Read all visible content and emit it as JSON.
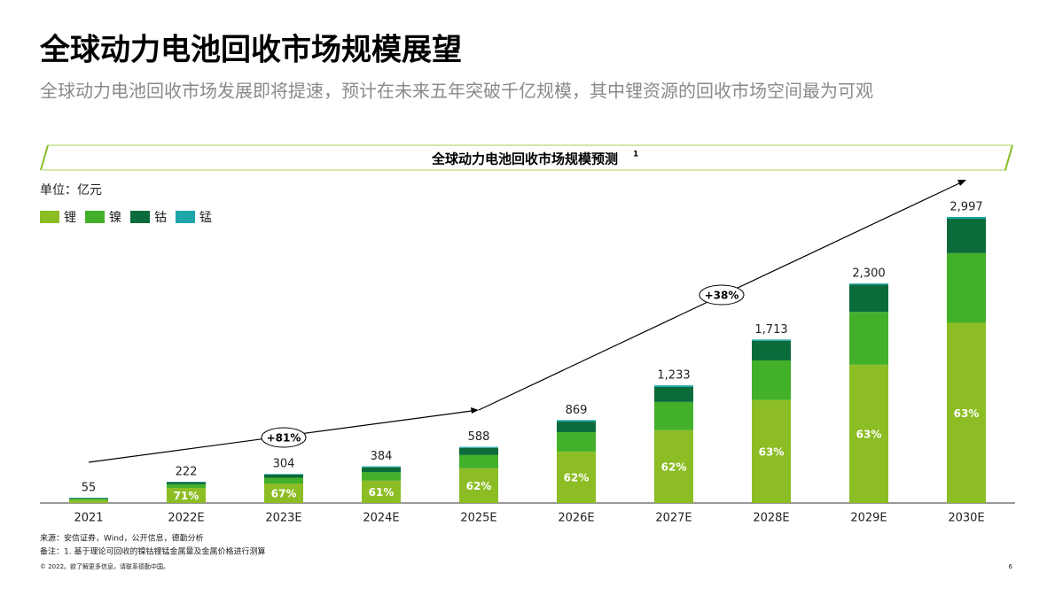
{
  "header": {
    "title": "全球动力电池回收市场规模展望",
    "subtitle": "全球动力电池回收市场发展即将提速，预计在未来五年突破千亿规模，其中锂资源的回收市场空间最为可观"
  },
  "chart_data": {
    "type": "stacked_bar",
    "title": "全球动力电池回收市场规模预测",
    "title_note": "1",
    "unit": "单位：亿元",
    "categories": [
      "2021",
      "2022E",
      "2023E",
      "2024E",
      "2025E",
      "2026E",
      "2027E",
      "2028E",
      "2029E",
      "2030E"
    ],
    "series": [
      {
        "name": "锂",
        "color": "#8cbd24",
        "values": [
          30,
          158,
          204,
          234,
          365,
          539,
          764,
          1079,
          1449,
          1888
        ],
        "share_labels": [
          null,
          "71%",
          "67%",
          "61%",
          "62%",
          "62%",
          "62%",
          "63%",
          "63%",
          "63%"
        ]
      },
      {
        "name": "镍",
        "color": "#43b02a",
        "values": [
          14,
          38,
          60,
          90,
          138,
          203,
          295,
          415,
          553,
          730
        ]
      },
      {
        "name": "钴",
        "color": "#0b6b3a",
        "values": [
          8,
          22,
          34,
          50,
          74,
          111,
          157,
          206,
          286,
          360
        ]
      },
      {
        "name": "锰",
        "color": "#1ea5a8",
        "values": [
          3,
          4,
          6,
          10,
          11,
          16,
          17,
          13,
          12,
          19
        ]
      }
    ],
    "totals": [
      55,
      222,
      304,
      384,
      588,
      869,
      1233,
      1713,
      2300,
      2997
    ],
    "total_labels": [
      "55",
      "222",
      "304",
      "384",
      "588",
      "869",
      "1,233",
      "1,713",
      "2,300",
      "2,997"
    ],
    "ylim": [
      0,
      3500
    ],
    "annotations": [
      {
        "text": "+81%"
      },
      {
        "text": "+38%"
      }
    ]
  },
  "footer": {
    "source": "来源：安信证券，Wind，公开信息，德勤分析",
    "note": "备注：1. 基于理论可回收的镍钴锂锰金属量及金属价格进行测算",
    "copyright": "© 2022。欲了解更多信息，请联系德勤中国。",
    "page": "6"
  }
}
